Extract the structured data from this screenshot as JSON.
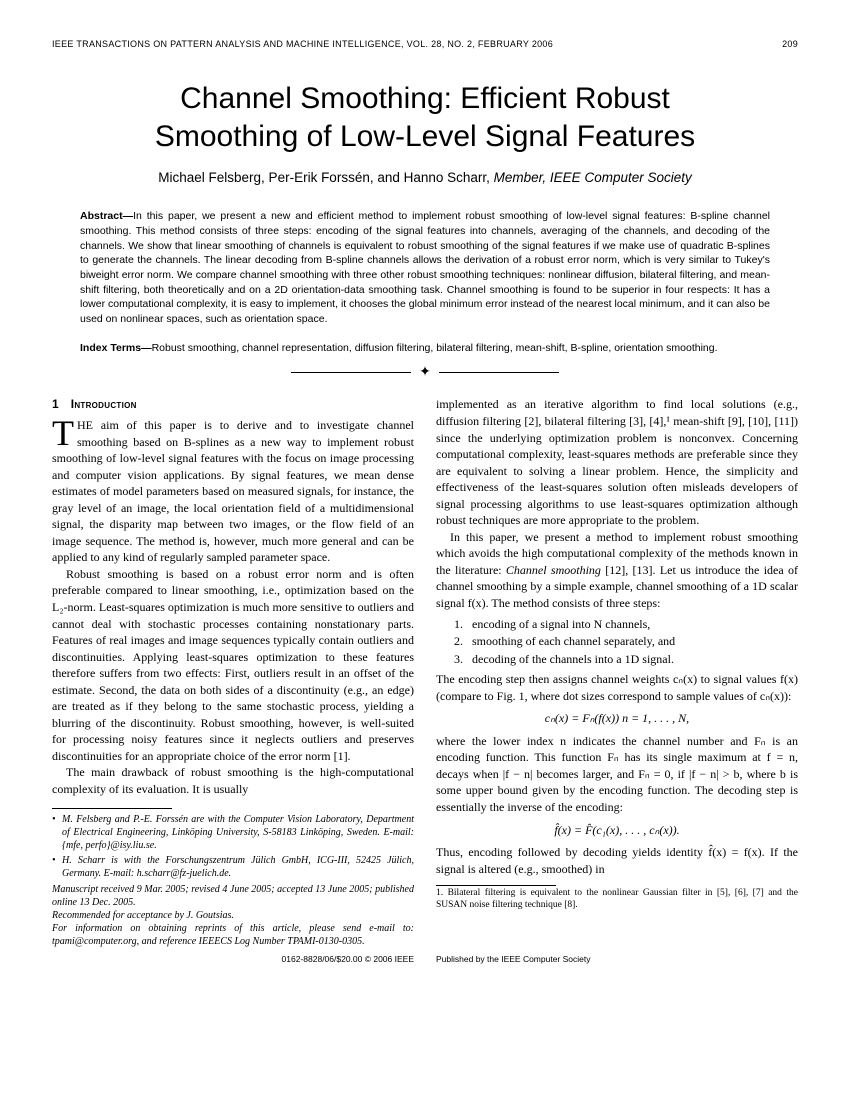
{
  "journal_header": "IEEE TRANSACTIONS ON PATTERN ANALYSIS AND MACHINE INTELLIGENCE,  VOL. 28,  NO. 2,  FEBRUARY 2006",
  "page_number": "209",
  "title_line1": "Channel Smoothing: Efficient Robust",
  "title_line2": "Smoothing of Low-Level Signal Features",
  "authors_prefix": "Michael Felsberg, Per-Erik Forssén, and Hanno Scharr, ",
  "authors_member": "Member, IEEE Computer Society",
  "abstract_label": "Abstract—",
  "abstract_text": "In this paper, we present a new and efficient method to implement robust smoothing of low-level signal features: B-spline channel smoothing. This method consists of three steps: encoding of the signal features into channels, averaging of the channels, and decoding of the channels. We show that linear smoothing of channels is equivalent to robust smoothing of the signal features if we make use of quadratic B-splines to generate the channels. The linear decoding from B-spline channels allows the derivation of a robust error norm, which is very similar to Tukey's biweight error norm. We compare channel smoothing with three other robust smoothing techniques: nonlinear diffusion, bilateral filtering, and mean-shift filtering, both theoretically and on a 2D orientation-data smoothing task. Channel smoothing is found to be superior in four respects: It has a lower computational complexity, it is easy to implement, it chooses the global minimum error instead of the nearest local minimum, and it can also be used on nonlinear spaces, such as orientation space.",
  "index_label": "Index Terms—",
  "index_text": "Robust smoothing, channel representation, diffusion filtering, bilateral filtering, mean-shift, B-spline, orientation smoothing.",
  "section1_num": "1",
  "section1_title": "Introduction",
  "dropcap": "T",
  "col1_p1": "HE aim of this paper is to derive and to investigate channel smoothing based on B-splines as a new way to implement robust smoothing of low-level signal features with the focus on image processing and computer vision applications. By signal features, we mean dense estimates of model parameters based on measured signals, for instance, the gray level of an image, the local orientation field of a multidimensional signal, the disparity map between two images, or the flow field of an image sequence. The method is, however, much more general and can be applied to any kind of regularly sampled parameter space.",
  "col1_p2": "Robust smoothing is based on a robust error norm and is often preferable compared to linear smoothing, i.e., optimization based on the L₂-norm. Least-squares optimization is much more sensitive to outliers and cannot deal with stochastic processes containing nonstationary parts. Features of real images and image sequences typically contain outliers and discontinuities. Applying least-squares optimization to these features therefore suffers from two effects: First, outliers result in an offset of the estimate. Second, the data on both sides of a discontinuity (e.g., an edge) are treated as if they belong to the same stochastic process, yielding a blurring of the discontinuity. Robust smoothing, however, is well-suited for processing noisy features since it neglects outliers and preserves discontinuities for an appropriate choice of the error norm [1].",
  "col1_p3": "The main drawback of robust smoothing is the high-computational complexity of its evaluation. It is usually",
  "affil1": "M. Felsberg and P.-E. Forssén are with the Computer Vision Laboratory, Department of Electrical Engineering, Linköping University, S-58183 Linköping, Sweden. E-mail: {mfe, perfo}@isy.liu.se.",
  "affil2": "H. Scharr is with the Forschungszentrum Jülich GmbH, ICG-III, 52425 Jülich, Germany. E-mail: h.scharr@fz-juelich.de.",
  "manuscript1": "Manuscript received 9 Mar. 2005; revised 4 June 2005; accepted 13 June 2005; published online 13 Dec. 2005.",
  "manuscript2": "Recommended for acceptance by J. Goutsias.",
  "manuscript3": "For information on obtaining reprints of this article, please send e-mail to: tpami@computer.org, and reference IEEECS Log Number TPAMI-0130-0305.",
  "col2_p1": "implemented as an iterative algorithm to find local solutions (e.g., diffusion filtering [2], bilateral filtering [3], [4],¹ mean-shift [9], [10], [11]) since the underlying optimization problem is nonconvex. Concerning computational complexity, least-squares methods are preferable since they are equivalent to solving a linear problem. Hence, the simplicity and effectiveness of the least-squares solution often misleads developers of signal processing algorithms to use least-squares optimization although robust techniques are more appropriate to the problem.",
  "col2_p2a": "In this paper, we present a method to implement robust smoothing which avoids the high computational complexity of the methods known in the literature: ",
  "col2_p2b": "Channel smoothing",
  "col2_p2c": " [12], [13]. Let us introduce the idea of channel smoothing by a simple example, channel smoothing of a 1D scalar signal f(x). The method consists of three steps:",
  "step1": "encoding of a signal into N channels,",
  "step2": "smoothing of each channel separately, and",
  "step3": "decoding of the channels into a 1D signal.",
  "col2_p3": "The encoding step then assigns channel weights cₙ(x) to signal values f(x) (compare to Fig. 1, where dot sizes correspond to sample values of cₙ(x)):",
  "eq1": "cₙ(x) = Fₙ(f(x))      n = 1, . . . , N,",
  "col2_p4": "where the lower index n indicates the channel number and Fₙ is an encoding function. This function Fₙ has its single maximum at f = n, decays when |f − n| becomes larger, and Fₙ = 0, if |f − n| > b, where b is some upper bound given by the encoding function. The decoding step is essentially the inverse of the encoding:",
  "eq2": "f̂(x) = F̂(c₁(x), . . . , cₙ(x)).",
  "col2_p5": "Thus, encoding followed by decoding yields identity f̂(x) = f(x). If the signal is altered (e.g., smoothed) in",
  "footnote1": "1. Bilateral filtering is equivalent to the nonlinear Gaussian filter in [5], [6], [7] and the SUSAN noise filtering technique [8].",
  "bottom_left": "0162-8828/06/$20.00 © 2006 IEEE",
  "bottom_right": "Published by the IEEE Computer Society"
}
